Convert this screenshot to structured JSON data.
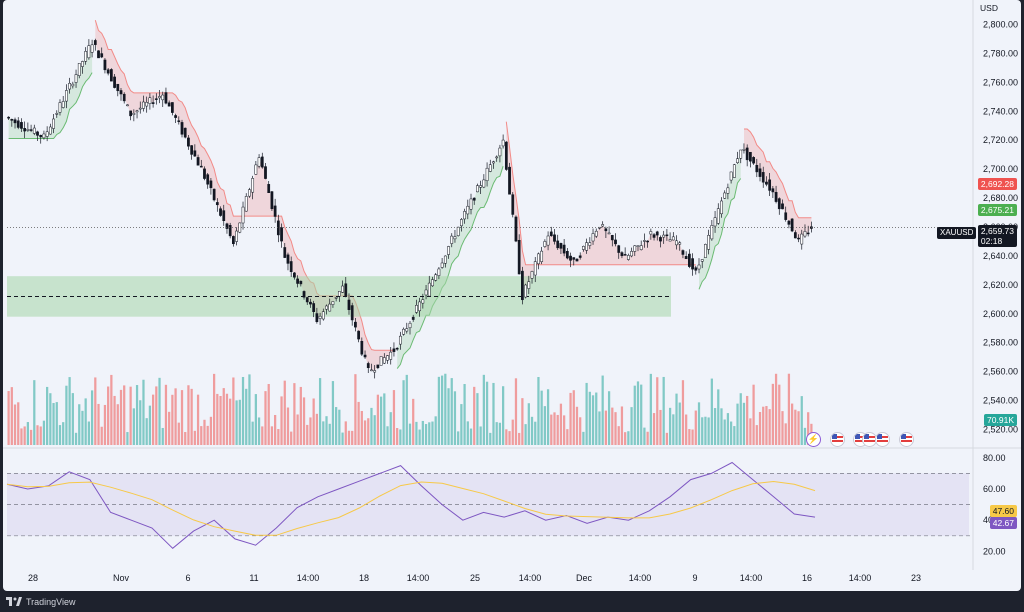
{
  "currency": "USD",
  "symbol": "XAUUSD",
  "last_price": "2,659.73",
  "countdown": "02:18",
  "upper_band_value": "2,692.28",
  "lower_band_value": "2,675.21",
  "volume_value": "70.91K",
  "rsi_value": "42.67",
  "rsi_ma_value": "47.60",
  "brand": "TradingView",
  "price_axis": {
    "min": 2510,
    "max": 2810,
    "ticks": [
      "2,800.00",
      "2,780.00",
      "2,760.00",
      "2,740.00",
      "2,720.00",
      "2,700.00",
      "2,680.00",
      "2,660.00",
      "2,640.00",
      "2,620.00",
      "2,600.00",
      "2,580.00",
      "2,560.00",
      "2,540.00",
      "2,520.00"
    ]
  },
  "rsi_axis": {
    "min": 10,
    "max": 85,
    "ticks": [
      "80.00",
      "60.00",
      "40.00",
      "20.00"
    ],
    "band_upper": 70,
    "band_lower": 30
  },
  "time_axis": [
    "28",
    "Nov",
    "6",
    "11",
    "14:00",
    "18",
    "14:00",
    "25",
    "14:00",
    "Dec",
    "14:00",
    "9",
    "14:00",
    "16",
    "14:00",
    "23"
  ],
  "colors": {
    "up": "#26a69a",
    "down": "#ef5350",
    "upper_band": "#f28a87",
    "lower_band": "#6bbb73",
    "rsi_line": "#7e57c2",
    "rsi_ma": "#f7c948",
    "demand_zone": "#a5d6a7",
    "axis_bg": "#f0f3fa"
  },
  "demand_zone": {
    "low": 2598,
    "high": 2626,
    "mid_line": 2612
  },
  "chart_data": {
    "type": "candlestick",
    "series": [
      {
        "name": "XAUUSD",
        "segments": [
          {
            "from": 2736,
            "to": 2722,
            "trend": "up"
          },
          {
            "from": 2722,
            "to": 2788,
            "trend": "up"
          },
          {
            "from": 2788,
            "to": 2738,
            "trend": "down"
          },
          {
            "from": 2738,
            "to": 2752,
            "trend": "down"
          },
          {
            "from": 2752,
            "to": 2700,
            "trend": "down"
          },
          {
            "from": 2700,
            "to": 2648,
            "trend": "down"
          },
          {
            "from": 2648,
            "to": 2710,
            "trend": "down"
          },
          {
            "from": 2710,
            "to": 2640,
            "trend": "down"
          },
          {
            "from": 2640,
            "to": 2596,
            "trend": "down"
          },
          {
            "from": 2596,
            "to": 2618,
            "trend": "down"
          },
          {
            "from": 2618,
            "to": 2560,
            "trend": "down"
          },
          {
            "from": 2560,
            "to": 2575,
            "trend": "down"
          },
          {
            "from": 2575,
            "to": 2615,
            "trend": "up"
          },
          {
            "from": 2615,
            "to": 2660,
            "trend": "up"
          },
          {
            "from": 2660,
            "to": 2720,
            "trend": "up"
          },
          {
            "from": 2720,
            "to": 2612,
            "trend": "down"
          },
          {
            "from": 2612,
            "to": 2655,
            "trend": "down"
          },
          {
            "from": 2655,
            "to": 2635,
            "trend": "down"
          },
          {
            "from": 2635,
            "to": 2662,
            "trend": "down"
          },
          {
            "from": 2662,
            "to": 2638,
            "trend": "down"
          },
          {
            "from": 2638,
            "to": 2655,
            "trend": "down"
          },
          {
            "from": 2655,
            "to": 2650,
            "trend": "down"
          },
          {
            "from": 2650,
            "to": 2628,
            "trend": "down"
          },
          {
            "from": 2628,
            "to": 2665,
            "trend": "up"
          },
          {
            "from": 2665,
            "to": 2715,
            "trend": "up"
          },
          {
            "from": 2715,
            "to": 2684,
            "trend": "down"
          },
          {
            "from": 2684,
            "to": 2650,
            "trend": "down"
          },
          {
            "from": 2650,
            "to": 2660,
            "trend": "down"
          }
        ]
      }
    ],
    "segment_bars": [
      12,
      15,
      12,
      10,
      12,
      10,
      8,
      8,
      10,
      8,
      8,
      8,
      10,
      10,
      14,
      6,
      8,
      8,
      8,
      8,
      8,
      8,
      6,
      6,
      8,
      10,
      8,
      4
    ],
    "rsi": [
      63,
      60,
      62,
      71,
      66,
      45,
      40,
      35,
      22,
      33,
      40,
      28,
      24,
      35,
      48,
      55,
      60,
      65,
      70,
      75,
      62,
      50,
      40,
      45,
      42,
      46,
      40,
      43,
      38,
      42,
      40,
      46,
      55,
      66,
      70,
      77,
      66,
      55,
      44,
      42
    ],
    "ylim": [
      2510,
      2810
    ]
  }
}
